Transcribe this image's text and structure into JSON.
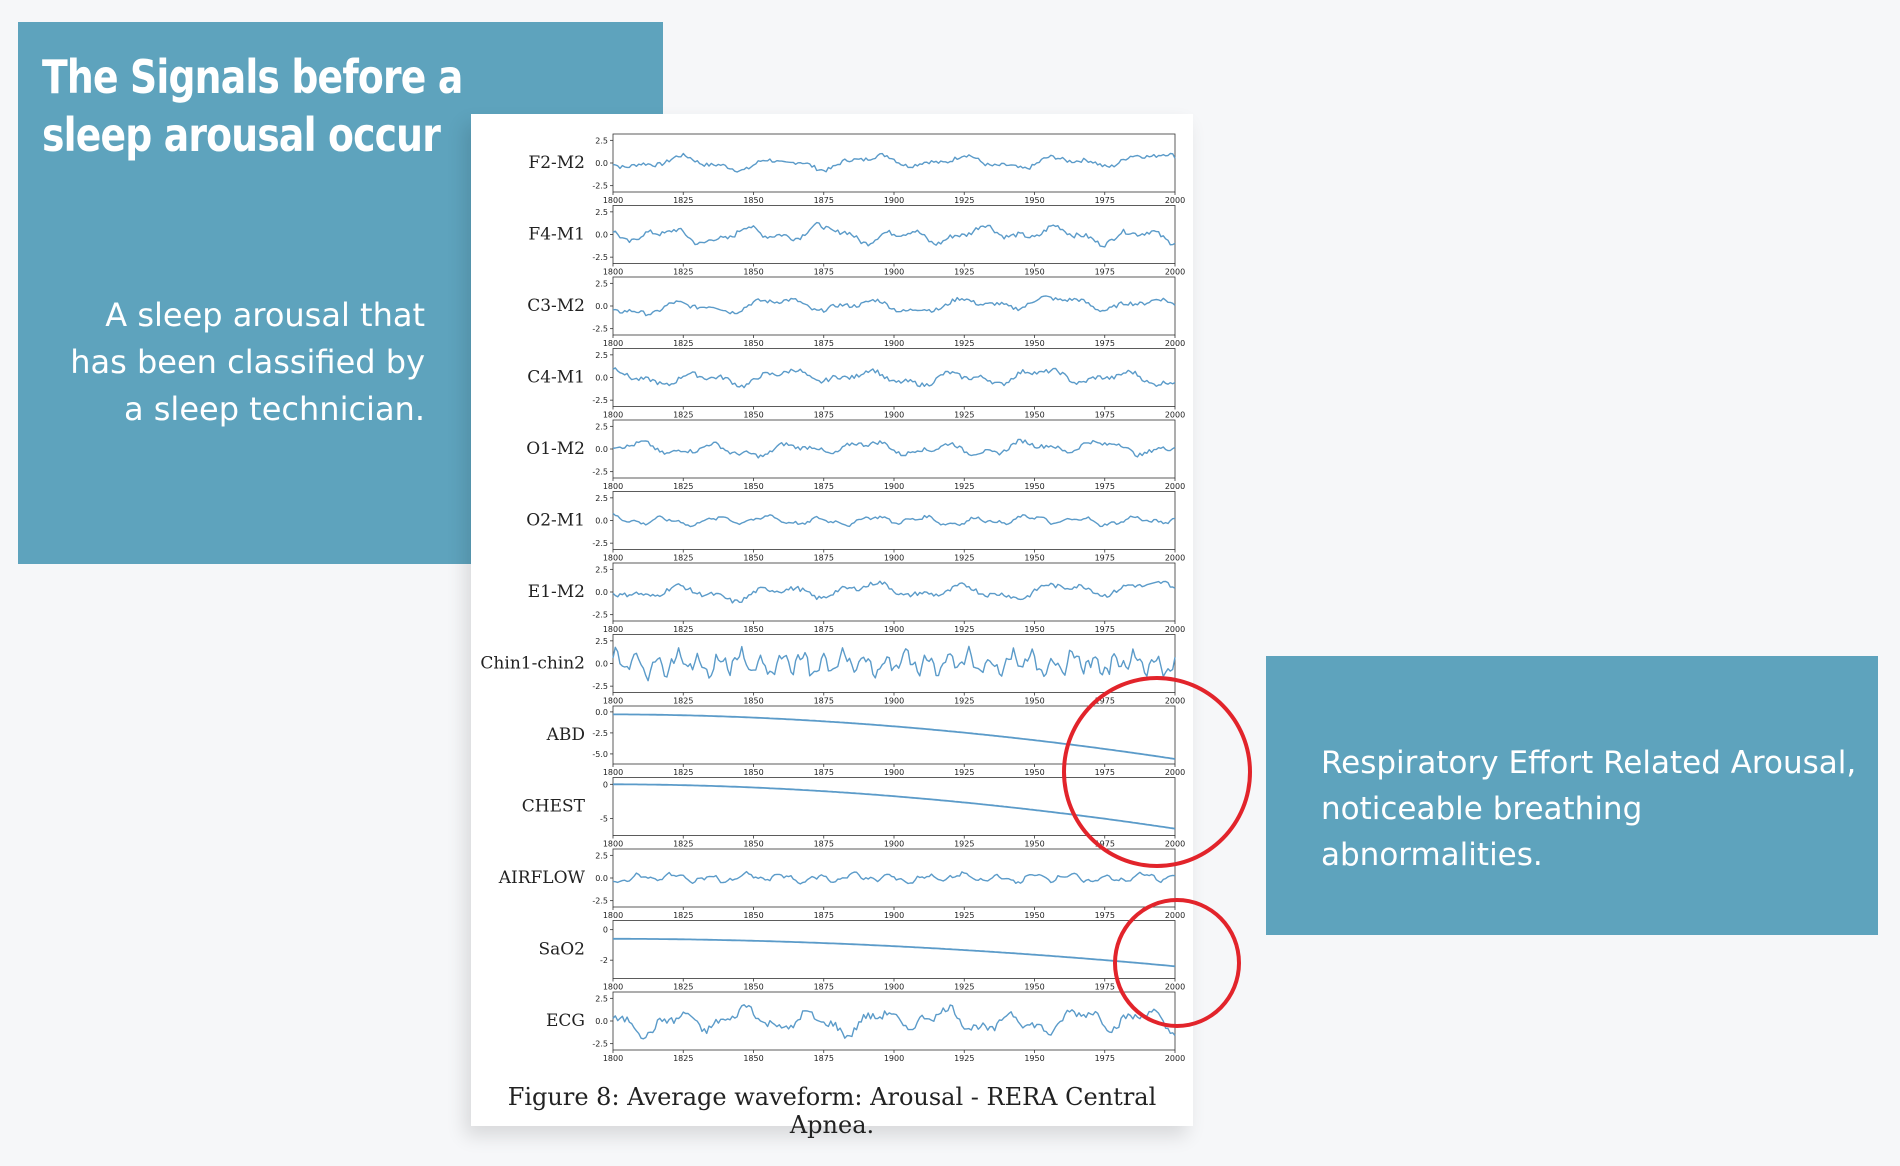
{
  "slide": {
    "title": "The Signals before a sleep arousal occur",
    "left_caption": "A sleep arousal that has been classified by a sleep technician.",
    "right_caption": "Respiratory Effort Related Arousal, noticeable breathing abnormalities.",
    "accent_color": "#5ea3bd",
    "circle_color": "#e2242b"
  },
  "figure": {
    "caption": "Figure 8: Average waveform: Arousal - RERA Central Apnea."
  },
  "chart_data": {
    "type": "line",
    "line_color": "#5b9bc9",
    "x_ticks": [
      1800,
      1825,
      1850,
      1875,
      1900,
      1925,
      1950,
      1975,
      2000
    ],
    "xlim": [
      1800,
      2000
    ],
    "panels": [
      {
        "name": "F2-M2",
        "yticks": [
          "2.5",
          "0.0",
          "-2.5"
        ],
        "ytick_values": [
          2.5,
          0,
          -2.5
        ],
        "ylim": [
          -3.2,
          3.2
        ],
        "kind": "osc",
        "amp": 0.9,
        "freq": 1.0,
        "trend": 0.4
      },
      {
        "name": "F4-M1",
        "yticks": [
          "2.5",
          "0.0",
          "-2.5"
        ],
        "ytick_values": [
          2.5,
          0,
          -2.5
        ],
        "ylim": [
          -3.2,
          3.2
        ],
        "kind": "osc",
        "amp": 1.1,
        "freq": 1.2,
        "trend": 0
      },
      {
        "name": "C3-M2",
        "yticks": [
          "2.5",
          "0.0",
          "-2.5"
        ],
        "ytick_values": [
          2.5,
          0,
          -2.5
        ],
        "ylim": [
          -3.2,
          3.2
        ],
        "kind": "osc",
        "amp": 0.9,
        "freq": 1.0,
        "trend": 0.5
      },
      {
        "name": "C4-M1",
        "yticks": [
          "2.5",
          "0.0",
          "-2.5"
        ],
        "ytick_values": [
          2.5,
          0,
          -2.5
        ],
        "ylim": [
          -3.2,
          3.2
        ],
        "kind": "osc",
        "amp": 1.0,
        "freq": 1.1,
        "trend": 0
      },
      {
        "name": "O1-M2",
        "yticks": [
          "2.5",
          "0.0",
          "-2.5"
        ],
        "ytick_values": [
          2.5,
          0,
          -2.5
        ],
        "ylim": [
          -3.2,
          3.2
        ],
        "kind": "osc",
        "amp": 0.9,
        "freq": 1.2,
        "trend": 0.3
      },
      {
        "name": "O2-M1",
        "yticks": [
          "2.5",
          "0.0",
          "-2.5"
        ],
        "ytick_values": [
          2.5,
          0,
          -2.5
        ],
        "ylim": [
          -3.2,
          3.2
        ],
        "kind": "osc",
        "amp": 0.6,
        "freq": 1.8,
        "trend": 0
      },
      {
        "name": "E1-M2",
        "yticks": [
          "2.5",
          "0.0",
          "-2.5"
        ],
        "ytick_values": [
          2.5,
          0,
          -2.5
        ],
        "ylim": [
          -3.2,
          3.2
        ],
        "kind": "osc",
        "amp": 1.0,
        "freq": 1.0,
        "trend": 0.4
      },
      {
        "name": "Chin1-chin2",
        "yticks": [
          "2.5",
          "0.0",
          "-2.5"
        ],
        "ytick_values": [
          2.5,
          0,
          -2.5
        ],
        "ylim": [
          -3.2,
          3.2
        ],
        "kind": "osc",
        "amp": 1.6,
        "freq": 4.5,
        "trend": 0
      },
      {
        "name": "ABD",
        "yticks": [
          "0.0",
          "-2.5",
          "-5.0"
        ],
        "ytick_values": [
          0,
          -2.5,
          -5
        ],
        "ylim": [
          -6.2,
          0.7
        ],
        "kind": "decay",
        "start": -0.3,
        "end": -5.6
      },
      {
        "name": "CHEST",
        "yticks": [
          "0",
          "-5"
        ],
        "ytick_values": [
          0,
          -5
        ],
        "ylim": [
          -7.5,
          1.0
        ],
        "kind": "decay",
        "start": 0,
        "end": -6.5
      },
      {
        "name": "AIRFLOW",
        "yticks": [
          "2.5",
          "0.0",
          "-2.5"
        ],
        "ytick_values": [
          2.5,
          0,
          -2.5
        ],
        "ylim": [
          -3.2,
          3.2
        ],
        "kind": "osc",
        "amp": 0.6,
        "freq": 2.6,
        "trend": 0
      },
      {
        "name": "SaO2",
        "yticks": [
          "0",
          "-2"
        ],
        "ytick_values": [
          0,
          -2
        ],
        "ylim": [
          -3.2,
          0.6
        ],
        "kind": "decay",
        "start": -0.6,
        "end": -2.4
      },
      {
        "name": "ECG",
        "yticks": [
          "2.5",
          "0.0",
          "-2.5"
        ],
        "ytick_values": [
          2.5,
          0,
          -2.5
        ],
        "ylim": [
          -3.2,
          3.2
        ],
        "kind": "osc",
        "amp": 1.6,
        "freq": 1.4,
        "trend": 0
      }
    ]
  }
}
